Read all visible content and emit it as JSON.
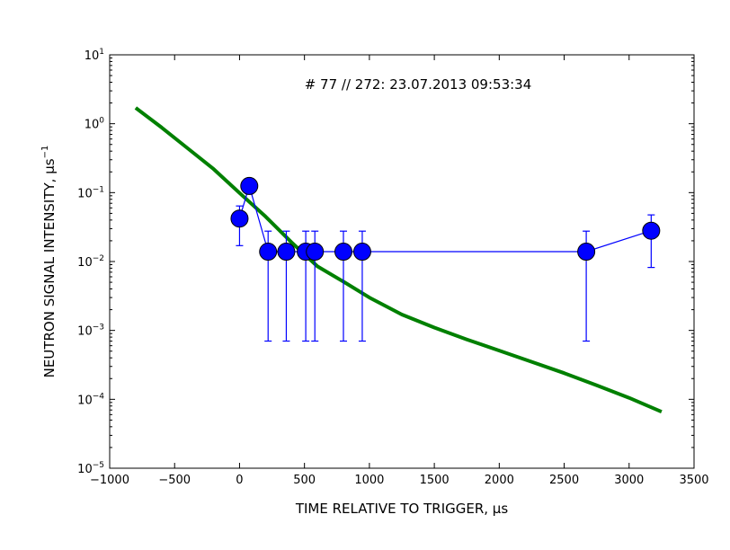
{
  "chart_data": {
    "type": "scatter",
    "annotation": "# 77 // 272: 23.07.2013 09:53:34",
    "xlabel": "TIME RELATIVE TO TRIGGER, μs",
    "ylabel": "NEUTRON SIGNAL INTENSITY, μs",
    "ylabel_exponent": "−1",
    "xlim": [
      -1000,
      3500
    ],
    "ylim": [
      1e-05,
      10
    ],
    "yscale": "log",
    "x_ticks": [
      -1000,
      -500,
      0,
      500,
      1000,
      1500,
      2000,
      2500,
      3000,
      3500
    ],
    "x_tick_labels": [
      "−1000",
      "−500",
      "0",
      "500",
      "1000",
      "1500",
      "2000",
      "2500",
      "3000",
      "3500"
    ],
    "y_tick_base": "10",
    "y_tick_exponents": [
      "−5",
      "−4",
      "−3",
      "−2",
      "−1",
      "0",
      "1"
    ],
    "y_tick_values": [
      1e-05,
      0.0001,
      0.001,
      0.01,
      0.1,
      1,
      10
    ],
    "series": [
      {
        "kind": "points",
        "color": "#0000ff",
        "x": [
          0,
          75,
          220,
          360,
          510,
          580,
          800,
          945,
          2670,
          3170
        ],
        "y": [
          0.042,
          0.125,
          0.0139,
          0.0139,
          0.0139,
          0.0139,
          0.0139,
          0.0139,
          0.0139,
          0.028
        ],
        "err_low": [
          0.025,
          0.03,
          0.0132,
          0.0132,
          0.0132,
          0.0132,
          0.0132,
          0.0132,
          0.0132,
          0.0198
        ],
        "err_high": [
          0.022,
          0.0,
          0.0137,
          0.0137,
          0.0137,
          0.0137,
          0.0137,
          0.0137,
          0.0137,
          0.0195
        ]
      },
      {
        "kind": "curve",
        "color": "#008000",
        "x": [
          -800,
          -600,
          -400,
          -200,
          0,
          200,
          400,
          600,
          800,
          1000,
          1250,
          1500,
          1750,
          2000,
          2250,
          2500,
          2750,
          3000,
          3250
        ],
        "y": [
          1.7,
          0.88,
          0.44,
          0.22,
          0.099,
          0.045,
          0.019,
          0.0085,
          0.0051,
          0.003,
          0.0017,
          0.0011,
          0.00074,
          0.00051,
          0.00035,
          0.00024,
          0.00016,
          0.000105,
          6.6e-05
        ]
      }
    ]
  }
}
